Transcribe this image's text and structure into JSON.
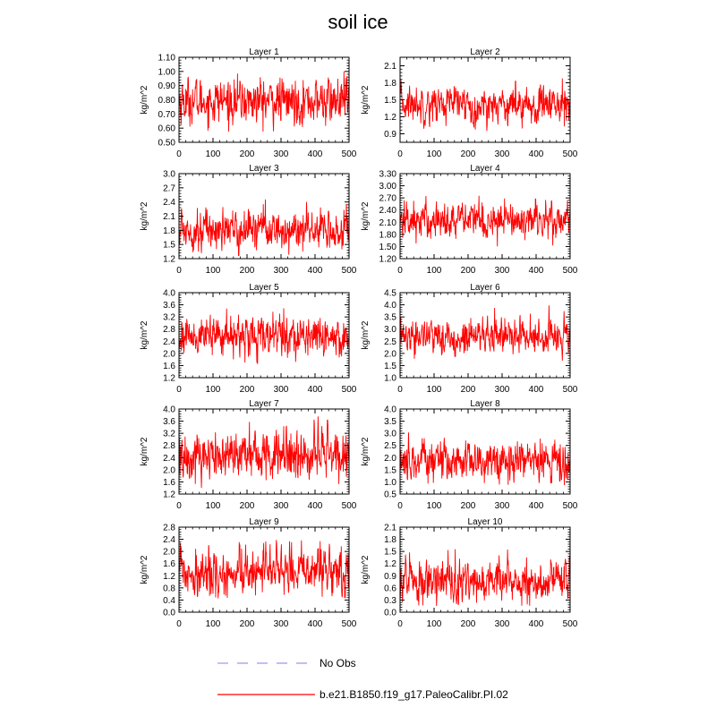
{
  "title": "soil ice",
  "legend": {
    "items": [
      {
        "label": "No Obs",
        "color": "#9999ee",
        "style": "dashed"
      },
      {
        "label": "b.e21.B1850.f19_g17.PaleoCalibr.PI.02",
        "color": "#ff0000",
        "style": "solid"
      }
    ]
  },
  "chart_data": [
    {
      "type": "line",
      "title": "Layer 1",
      "ylabel": "kg/m^2",
      "xlim": [
        0,
        500
      ],
      "ylim": [
        0.5,
        1.1
      ],
      "xticks": [
        0,
        100,
        200,
        300,
        400,
        500
      ],
      "yticks": [
        "0.50",
        "0.60",
        "0.70",
        "0.80",
        "0.90",
        "1.00",
        "1.10"
      ],
      "series": [
        {
          "name": "b.e21.B1850.f19_g17.PaleoCalibr.PI.02",
          "color": "#ff0000",
          "mean": 0.79,
          "std": 0.075,
          "min": 0.56,
          "max": 1.09,
          "n": 500
        }
      ]
    },
    {
      "type": "line",
      "title": "Layer 2",
      "ylabel": "kg/m^2",
      "xlim": [
        0,
        500
      ],
      "ylim": [
        0.75,
        2.25
      ],
      "xticks": [
        0,
        100,
        200,
        300,
        400,
        500
      ],
      "yticks": [
        "0.9",
        "1.2",
        "1.5",
        "1.8",
        "2.1"
      ],
      "series": [
        {
          "name": "b.e21.B1850.f19_g17.PaleoCalibr.PI.02",
          "color": "#ff0000",
          "mean": 1.43,
          "std": 0.15,
          "min": 0.95,
          "max": 2.08,
          "n": 500
        }
      ]
    },
    {
      "type": "line",
      "title": "Layer 3",
      "ylabel": "kg/m^2",
      "xlim": [
        0,
        500
      ],
      "ylim": [
        1.2,
        3.0
      ],
      "xticks": [
        0,
        100,
        200,
        300,
        400,
        500
      ],
      "yticks": [
        "1.2",
        "1.5",
        "1.8",
        "2.1",
        "2.4",
        "2.7",
        "3.0"
      ],
      "series": [
        {
          "name": "b.e21.B1850.f19_g17.PaleoCalibr.PI.02",
          "color": "#ff0000",
          "mean": 1.82,
          "std": 0.2,
          "min": 1.25,
          "max": 2.72,
          "n": 500
        }
      ]
    },
    {
      "type": "line",
      "title": "Layer 4",
      "ylabel": "kg/m^2",
      "xlim": [
        0,
        500
      ],
      "ylim": [
        1.2,
        3.3
      ],
      "xticks": [
        0,
        100,
        200,
        300,
        400,
        500
      ],
      "yticks": [
        "1.20",
        "1.50",
        "1.80",
        "2.10",
        "2.40",
        "2.70",
        "3.00",
        "3.30"
      ],
      "series": [
        {
          "name": "b.e21.B1850.f19_g17.PaleoCalibr.PI.02",
          "color": "#ff0000",
          "mean": 2.15,
          "std": 0.22,
          "min": 1.5,
          "max": 3.08,
          "n": 500
        }
      ]
    },
    {
      "type": "line",
      "title": "Layer 5",
      "ylabel": "kg/m^2",
      "xlim": [
        0,
        500
      ],
      "ylim": [
        1.2,
        4.0
      ],
      "xticks": [
        0,
        100,
        200,
        300,
        400,
        500
      ],
      "yticks": [
        "1.2",
        "1.6",
        "2.0",
        "2.4",
        "2.8",
        "3.2",
        "3.6",
        "4.0"
      ],
      "series": [
        {
          "name": "b.e21.B1850.f19_g17.PaleoCalibr.PI.02",
          "color": "#ff0000",
          "mean": 2.58,
          "std": 0.3,
          "min": 1.55,
          "max": 3.8,
          "n": 500
        }
      ]
    },
    {
      "type": "line",
      "title": "Layer 6",
      "ylabel": "kg/m^2",
      "xlim": [
        0,
        500
      ],
      "ylim": [
        1.0,
        4.5
      ],
      "xticks": [
        0,
        100,
        200,
        300,
        400,
        500
      ],
      "yticks": [
        "1.0",
        "1.5",
        "2.0",
        "2.5",
        "3.0",
        "3.5",
        "4.0",
        "4.5"
      ],
      "series": [
        {
          "name": "b.e21.B1850.f19_g17.PaleoCalibr.PI.02",
          "color": "#ff0000",
          "mean": 2.7,
          "std": 0.35,
          "min": 1.45,
          "max": 4.05,
          "n": 500
        }
      ]
    },
    {
      "type": "line",
      "title": "Layer 7",
      "ylabel": "kg/m^2",
      "xlim": [
        0,
        500
      ],
      "ylim": [
        1.2,
        4.0
      ],
      "xticks": [
        0,
        100,
        200,
        300,
        400,
        500
      ],
      "yticks": [
        "1.2",
        "1.6",
        "2.0",
        "2.4",
        "2.8",
        "3.2",
        "3.6",
        "4.0"
      ],
      "series": [
        {
          "name": "b.e21.B1850.f19_g17.PaleoCalibr.PI.02",
          "color": "#ff0000",
          "mean": 2.5,
          "std": 0.4,
          "min": 1.3,
          "max": 3.9,
          "n": 500
        }
      ]
    },
    {
      "type": "line",
      "title": "Layer 8",
      "ylabel": "kg/m^2",
      "xlim": [
        0,
        500
      ],
      "ylim": [
        0.5,
        4.0
      ],
      "xticks": [
        0,
        100,
        200,
        300,
        400,
        500
      ],
      "yticks": [
        "0.5",
        "1.0",
        "1.5",
        "2.0",
        "2.5",
        "3.0",
        "3.5",
        "4.0"
      ],
      "series": [
        {
          "name": "b.e21.B1850.f19_g17.PaleoCalibr.PI.02",
          "color": "#ff0000",
          "mean": 1.85,
          "std": 0.4,
          "min": 0.85,
          "max": 3.5,
          "n": 500
        }
      ]
    },
    {
      "type": "line",
      "title": "Layer 9",
      "ylabel": "kg/m^2",
      "xlim": [
        0,
        500
      ],
      "ylim": [
        0.0,
        2.8
      ],
      "xticks": [
        0,
        100,
        200,
        300,
        400,
        500
      ],
      "yticks": [
        "0.0",
        "0.4",
        "0.8",
        "1.2",
        "1.6",
        "2.0",
        "2.4",
        "2.8"
      ],
      "series": [
        {
          "name": "b.e21.B1850.f19_g17.PaleoCalibr.PI.02",
          "color": "#ff0000",
          "mean": 1.3,
          "std": 0.35,
          "min": 0.45,
          "max": 2.65,
          "n": 500
        }
      ]
    },
    {
      "type": "line",
      "title": "Layer 10",
      "ylabel": "kg/m^2",
      "xlim": [
        0,
        500
      ],
      "ylim": [
        0.0,
        2.1
      ],
      "xticks": [
        0,
        100,
        200,
        300,
        400,
        500
      ],
      "yticks": [
        "0.0",
        "0.3",
        "0.6",
        "0.9",
        "1.2",
        "1.5",
        "1.8",
        "2.1"
      ],
      "series": [
        {
          "name": "b.e21.B1850.f19_g17.PaleoCalibr.PI.02",
          "color": "#ff0000",
          "mean": 0.78,
          "std": 0.25,
          "min": 0.15,
          "max": 1.85,
          "n": 500
        }
      ]
    }
  ]
}
